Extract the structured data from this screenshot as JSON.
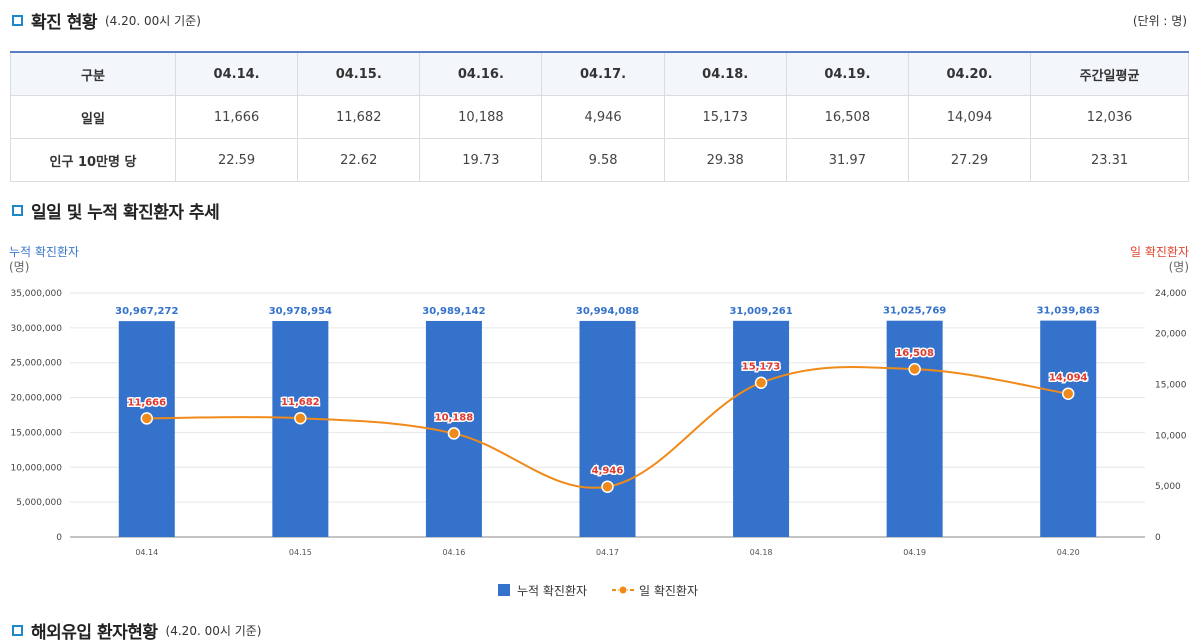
{
  "section1": {
    "title": "확진 현황",
    "subtitle": "(4.20. 00시 기준)",
    "unit": "(단위 : 명)"
  },
  "table": {
    "headers": [
      "구분",
      "04.14.",
      "04.15.",
      "04.16.",
      "04.17.",
      "04.18.",
      "04.19.",
      "04.20.",
      "주간일평균"
    ],
    "rows": [
      {
        "label": "일일",
        "cells": [
          "11,666",
          "11,682",
          "10,188",
          "4,946",
          "15,173",
          "16,508",
          "14,094",
          "12,036"
        ]
      },
      {
        "label": "인구 10만명 당",
        "cells": [
          "22.59",
          "22.62",
          "19.73",
          "9.58",
          "29.38",
          "31.97",
          "27.29",
          "23.31"
        ]
      }
    ]
  },
  "section2": {
    "title": "일일 및 누적 확진환자 추세"
  },
  "section3": {
    "title": "해외유입 환자현황",
    "subtitle": "(4.20. 00시 기준)"
  },
  "colors": {
    "bar": "#3472cc",
    "line": "#f08a1a",
    "left_axis": "#3a78c8",
    "right_axis": "#e0452e",
    "label_red": "#e03a2e"
  },
  "chart_data": {
    "type": "bar",
    "categories": [
      "04.14",
      "04.15",
      "04.16",
      "04.17",
      "04.18",
      "04.19",
      "04.20"
    ],
    "series": [
      {
        "name": "누적 확진환자",
        "type": "bar",
        "axis": "left",
        "values": [
          30967272,
          30978954,
          30989142,
          30994088,
          31009261,
          31025769,
          31039863
        ],
        "labels": [
          "30,967,272",
          "30,978,954",
          "30,989,142",
          "30,994,088",
          "31,009,261",
          "31,025,769",
          "31,039,863"
        ]
      },
      {
        "name": "일 확진환자",
        "type": "line",
        "axis": "right",
        "values": [
          11666,
          11682,
          10188,
          4946,
          15173,
          16508,
          14094
        ],
        "labels": [
          "11,666",
          "11,682",
          "10,188",
          "4,946",
          "15,173",
          "16,508",
          "14,094"
        ]
      }
    ],
    "left_axis": {
      "title": "누적 확진환자",
      "unit": "(명)",
      "ylim": [
        0,
        35000000
      ],
      "ticks": [
        "0",
        "5,000,000",
        "10,000,000",
        "15,000,000",
        "20,000,000",
        "25,000,000",
        "30,000,000",
        "35,000,000"
      ]
    },
    "right_axis": {
      "title": "일 확진환자",
      "unit": "(명)",
      "ylim": [
        0,
        24000
      ],
      "ticks": [
        "0",
        "5,000",
        "10,000",
        "15,000",
        "20,000",
        "24,000"
      ]
    },
    "legend": [
      "누적 확진환자",
      "일 확진환자"
    ]
  }
}
